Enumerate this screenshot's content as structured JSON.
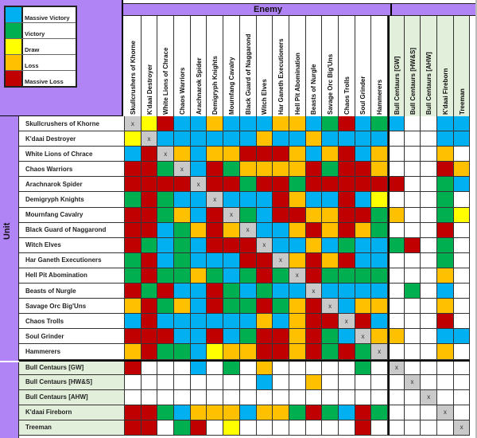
{
  "legend": {
    "items": [
      {
        "code": "B",
        "label": "Massive Victory",
        "color": "#00b0f0"
      },
      {
        "code": "G",
        "label": "Victory",
        "color": "#00b050"
      },
      {
        "code": "Y",
        "label": "Draw",
        "color": "#ffff00"
      },
      {
        "code": "O",
        "label": "Loss",
        "color": "#ffc000"
      },
      {
        "code": "R",
        "label": "Massive Loss",
        "color": "#c00000"
      }
    ]
  },
  "header": {
    "enemy_label": "Enemy",
    "unit_label": "Unit"
  },
  "columns": [
    "Skullcrushers of Khorne",
    "K'daai Destroyer",
    "White Lions of Chrace",
    "Chaos Warriors",
    "Arachnarok Spider",
    "Demigryph Knights",
    "Mournfang Cavalry",
    "Black Guard of Naggarond",
    "Witch Elves",
    "Har Ganeth Executioners",
    "Hell Pit Abomination",
    "Beasts of Nurgle",
    "Savage Orc Big'Uns",
    "Chaos Trolls",
    "Soul Grinder",
    "Hammerers",
    "Bull Centaurs [GW]",
    "Bull Centaurs [HW&S]",
    "Bull Centaurs [AHW]",
    "K'daai Fireborn",
    "Treeman"
  ],
  "rows": [
    {
      "name": "Skullcrushers of Khorne",
      "cells": [
        "X",
        "Y",
        "R",
        "B",
        "B",
        "O",
        "B",
        "B",
        "B",
        "O",
        "O",
        "B",
        "G",
        "R",
        "B",
        "G",
        "B",
        "W",
        "W",
        "B",
        "B"
      ]
    },
    {
      "name": "K'daai Destroyer",
      "cells": [
        "Y",
        "X",
        "B",
        "B",
        "B",
        "B",
        "B",
        "B",
        "O",
        "B",
        "B",
        "O",
        "B",
        "B",
        "B",
        "B",
        "W",
        "W",
        "W",
        "B",
        "B"
      ]
    },
    {
      "name": "White Lions of Chrace",
      "cells": [
        "B",
        "R",
        "X",
        "O",
        "B",
        "O",
        "O",
        "R",
        "R",
        "R",
        "O",
        "B",
        "O",
        "R",
        "B",
        "O",
        "W",
        "W",
        "W",
        "O",
        "W"
      ]
    },
    {
      "name": "Chaos Warriors",
      "cells": [
        "R",
        "R",
        "G",
        "X",
        "B",
        "R",
        "G",
        "O",
        "O",
        "O",
        "O",
        "R",
        "G",
        "R",
        "R",
        "O",
        "W",
        "W",
        "W",
        "R",
        "O"
      ]
    },
    {
      "name": "Arachnarok Spider",
      "cells": [
        "R",
        "R",
        "R",
        "R",
        "X",
        "R",
        "R",
        "G",
        "R",
        "R",
        "G",
        "R",
        "R",
        "R",
        "R",
        "R",
        "R",
        "W",
        "W",
        "G",
        "B"
      ]
    },
    {
      "name": "Demigryph Knights",
      "cells": [
        "G",
        "R",
        "G",
        "B",
        "B",
        "X",
        "B",
        "B",
        "B",
        "R",
        "O",
        "B",
        "B",
        "R",
        "B",
        "Y",
        "W",
        "W",
        "W",
        "G",
        "W"
      ]
    },
    {
      "name": "Mournfang Cavalry",
      "cells": [
        "R",
        "R",
        "G",
        "O",
        "B",
        "R",
        "X",
        "G",
        "B",
        "R",
        "R",
        "O",
        "O",
        "R",
        "R",
        "G",
        "O",
        "W",
        "W",
        "G",
        "Y"
      ]
    },
    {
      "name": "Black Guard of Naggarond",
      "cells": [
        "R",
        "R",
        "B",
        "G",
        "O",
        "R",
        "O",
        "X",
        "B",
        "B",
        "O",
        "R",
        "O",
        "R",
        "O",
        "G",
        "W",
        "W",
        "W",
        "R",
        "W"
      ]
    },
    {
      "name": "Witch Elves",
      "cells": [
        "R",
        "G",
        "B",
        "G",
        "B",
        "R",
        "R",
        "R",
        "X",
        "B",
        "B",
        "O",
        "B",
        "G",
        "B",
        "B",
        "G",
        "R",
        "W",
        "G",
        "W"
      ]
    },
    {
      "name": "Har Ganeth Executioners",
      "cells": [
        "G",
        "R",
        "B",
        "G",
        "B",
        "B",
        "B",
        "R",
        "R",
        "X",
        "O",
        "R",
        "O",
        "R",
        "B",
        "B",
        "W",
        "W",
        "W",
        "G",
        "W"
      ]
    },
    {
      "name": "Hell Pit Abomination",
      "cells": [
        "G",
        "R",
        "G",
        "G",
        "O",
        "G",
        "B",
        "G",
        "R",
        "G",
        "X",
        "R",
        "G",
        "G",
        "G",
        "G",
        "W",
        "W",
        "W",
        "O",
        "W"
      ]
    },
    {
      "name": "Beasts of Nurgle",
      "cells": [
        "R",
        "G",
        "R",
        "B",
        "B",
        "R",
        "G",
        "B",
        "G",
        "B",
        "B",
        "X",
        "B",
        "B",
        "B",
        "B",
        "W",
        "G",
        "W",
        "B",
        "W"
      ]
    },
    {
      "name": "Savage Orc Big'Uns",
      "cells": [
        "O",
        "R",
        "G",
        "O",
        "B",
        "R",
        "G",
        "G",
        "R",
        "G",
        "O",
        "R",
        "X",
        "B",
        "O",
        "O",
        "W",
        "W",
        "W",
        "O",
        "W"
      ]
    },
    {
      "name": "Chaos Trolls",
      "cells": [
        "B",
        "R",
        "B",
        "B",
        "B",
        "B",
        "B",
        "B",
        "O",
        "B",
        "O",
        "R",
        "R",
        "X",
        "R",
        "B",
        "W",
        "W",
        "W",
        "R",
        "W"
      ]
    },
    {
      "name": "Soul Grinder",
      "cells": [
        "R",
        "R",
        "R",
        "B",
        "B",
        "R",
        "B",
        "G",
        "R",
        "R",
        "O",
        "R",
        "G",
        "B",
        "X",
        "O",
        "O",
        "W",
        "W",
        "B",
        "B"
      ]
    },
    {
      "name": "Hammerers",
      "cells": [
        "O",
        "R",
        "G",
        "G",
        "B",
        "Y",
        "O",
        "O",
        "R",
        "R",
        "O",
        "R",
        "G",
        "R",
        "G",
        "X",
        "W",
        "W",
        "W",
        "O",
        "W"
      ]
    },
    {
      "name": "Bull Centaurs [GW]",
      "cells": [
        "R",
        "W",
        "W",
        "W",
        "B",
        "W",
        "G",
        "W",
        "O",
        "W",
        "W",
        "W",
        "W",
        "W",
        "G",
        "W",
        "X",
        "W",
        "W",
        "W",
        "W"
      ]
    },
    {
      "name": "Bull Centaurs [HW&S]",
      "cells": [
        "W",
        "W",
        "W",
        "W",
        "W",
        "W",
        "W",
        "W",
        "B",
        "W",
        "W",
        "O",
        "W",
        "W",
        "W",
        "W",
        "W",
        "X",
        "W",
        "W",
        "W"
      ]
    },
    {
      "name": "Bull Centaurs [AHW]",
      "cells": [
        "W",
        "W",
        "W",
        "W",
        "W",
        "W",
        "W",
        "W",
        "W",
        "W",
        "W",
        "W",
        "W",
        "W",
        "W",
        "W",
        "W",
        "W",
        "X",
        "W",
        "W"
      ]
    },
    {
      "name": "K'daai Fireborn",
      "cells": [
        "R",
        "R",
        "G",
        "B",
        "O",
        "O",
        "O",
        "B",
        "O",
        "O",
        "G",
        "R",
        "G",
        "B",
        "R",
        "G",
        "W",
        "W",
        "W",
        "X",
        "W"
      ]
    },
    {
      "name": "Treeman",
      "cells": [
        "R",
        "R",
        "W",
        "G",
        "R",
        "W",
        "Y",
        "W",
        "W",
        "W",
        "W",
        "W",
        "W",
        "W",
        "R",
        "W",
        "W",
        "W",
        "W",
        "W",
        "X"
      ]
    }
  ],
  "mirror_marker": "x"
}
